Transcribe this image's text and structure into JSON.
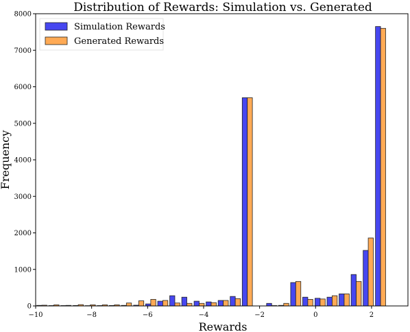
{
  "chart_data": {
    "type": "bar",
    "title": "Distribution of Rewards: Simulation vs. Generated",
    "xlabel": "Rewards",
    "ylabel": "Frequency",
    "xlim": [
      -10,
      3.3
    ],
    "ylim": [
      0,
      8000
    ],
    "xticks": [
      {
        "value": -10,
        "label": "−10"
      },
      {
        "value": -8,
        "label": "−8"
      },
      {
        "value": -6,
        "label": "−6"
      },
      {
        "value": -4,
        "label": "−4"
      },
      {
        "value": -2,
        "label": "−2"
      },
      {
        "value": 0,
        "label": "0"
      },
      {
        "value": 2,
        "label": "2"
      }
    ],
    "yticks": [
      {
        "value": 0,
        "label": "0"
      },
      {
        "value": 1000,
        "label": "1000"
      },
      {
        "value": 2000,
        "label": "2000"
      },
      {
        "value": 3000,
        "label": "3000"
      },
      {
        "value": 4000,
        "label": "4000"
      },
      {
        "value": 5000,
        "label": "5000"
      },
      {
        "value": 6000,
        "label": "6000"
      },
      {
        "value": 7000,
        "label": "7000"
      },
      {
        "value": 8000,
        "label": "8000"
      }
    ],
    "grid": false,
    "legend": "top-left",
    "bin_width": 0.432,
    "bin_starts": [
      -9.96,
      -9.53,
      -9.1,
      -8.66,
      -8.23,
      -7.8,
      -7.37,
      -6.94,
      -6.5,
      -6.07,
      -5.64,
      -5.21,
      -4.78,
      -4.34,
      -3.91,
      -3.48,
      -3.05,
      -2.62,
      -2.18,
      -1.75,
      -1.32,
      -0.89,
      -0.46,
      -0.02,
      0.41,
      0.84,
      1.27,
      1.7,
      2.14,
      2.57,
      3.0
    ],
    "series": [
      {
        "name": "Simulation Rewards",
        "color": "#3333ee",
        "values": [
          15,
          10,
          10,
          12,
          8,
          10,
          12,
          15,
          20,
          55,
          130,
          280,
          240,
          130,
          110,
          150,
          260,
          5700,
          0,
          70,
          15,
          640,
          240,
          210,
          240,
          330,
          860,
          1520,
          7650,
          0,
          0
        ]
      },
      {
        "name": "Generated Rewards",
        "color": "#ffaa55",
        "values": [
          20,
          30,
          15,
          35,
          30,
          30,
          30,
          80,
          140,
          180,
          150,
          80,
          70,
          70,
          90,
          150,
          200,
          5700,
          0,
          10,
          70,
          670,
          180,
          190,
          280,
          330,
          670,
          1860,
          7600,
          0,
          0
        ]
      }
    ]
  }
}
